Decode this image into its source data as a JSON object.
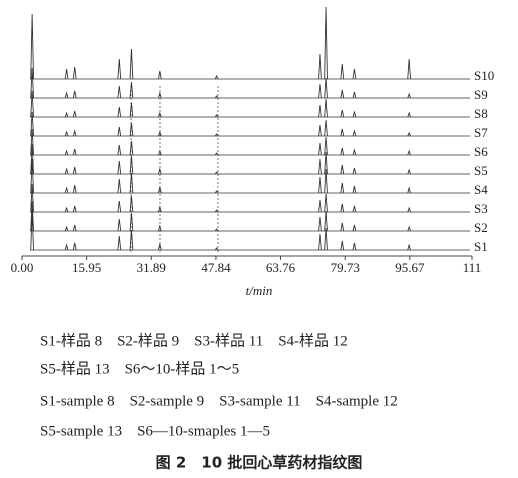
{
  "chart_data": {
    "type": "chromatogram",
    "x_label": "t/min",
    "xlim": [
      0,
      111
    ],
    "xticks": [
      {
        "value": 0,
        "label": "0.00"
      },
      15.95,
      31.89,
      47.84,
      63.76,
      79.73,
      95.67,
      111
    ],
    "color": "#333333",
    "x": [
      2.5,
      11,
      13,
      24,
      27,
      34,
      48,
      73.5,
      75,
      79,
      82,
      95.5
    ],
    "series": [
      {
        "name": "S1",
        "values": [
          38,
          5,
          7,
          14,
          20,
          6,
          2,
          16,
          22,
          9,
          7,
          5
        ]
      },
      {
        "name": "S2",
        "values": [
          30,
          4,
          6,
          12,
          18,
          5,
          2,
          14,
          20,
          8,
          6,
          4
        ]
      },
      {
        "name": "S3",
        "values": [
          28,
          4,
          6,
          11,
          16,
          5,
          2,
          12,
          18,
          8,
          6,
          4
        ]
      },
      {
        "name": "S4",
        "values": [
          34,
          5,
          8,
          14,
          20,
          6,
          2,
          16,
          24,
          10,
          7,
          5
        ]
      },
      {
        "name": "S5",
        "values": [
          30,
          5,
          7,
          13,
          18,
          5,
          2,
          15,
          22,
          9,
          6,
          4
        ]
      },
      {
        "name": "S6",
        "values": [
          26,
          4,
          6,
          10,
          14,
          4,
          2,
          12,
          18,
          7,
          5,
          4
        ]
      },
      {
        "name": "S7",
        "values": [
          24,
          4,
          5,
          9,
          13,
          4,
          2,
          11,
          16,
          7,
          5,
          3
        ]
      },
      {
        "name": "S8",
        "values": [
          26,
          4,
          6,
          10,
          14,
          4,
          2,
          12,
          18,
          7,
          5,
          4
        ]
      },
      {
        "name": "S9",
        "values": [
          30,
          5,
          7,
          12,
          16,
          5,
          2,
          14,
          20,
          8,
          6,
          4
        ]
      },
      {
        "name": "S10",
        "values": [
          65,
          10,
          12,
          20,
          30,
          8,
          3,
          25,
          72,
          15,
          10,
          20
        ]
      }
    ],
    "caption_lines": [
      "S1-样品 8　S2-样品 9　S3-样品 11　S4-样品 12",
      "S5-样品 13　S6～10-样品 1～5",
      "S1-sample 8　S2-sample 9　S3-sample 11　S4-sample 12",
      "S5-sample 13　S6—10-smaples 1—5"
    ],
    "figure_title": "图 2　10 批回心草药材指纹图"
  }
}
